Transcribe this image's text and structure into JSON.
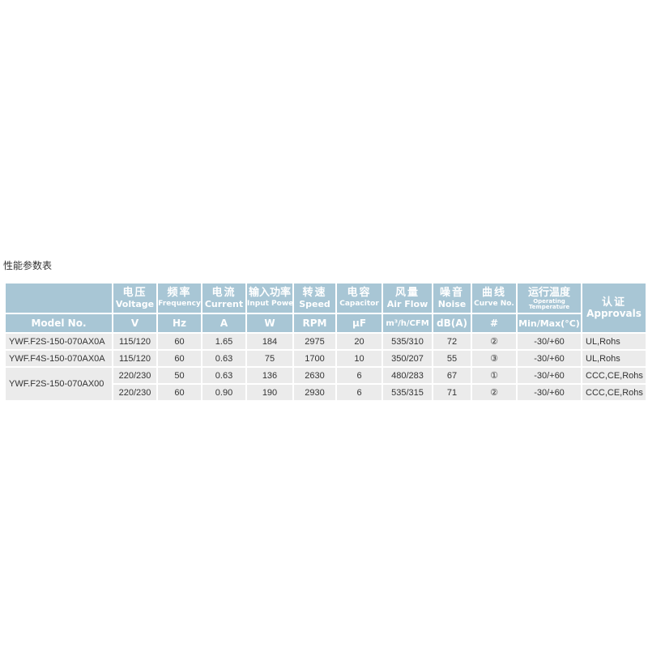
{
  "title": "性能参数表",
  "headers": [
    {
      "cn": "",
      "en": "",
      "unit": "Model No."
    },
    {
      "cn": "电压",
      "en": "Voltage",
      "unit": "V"
    },
    {
      "cn": "频率",
      "en": "Frequency",
      "unit": "Hz"
    },
    {
      "cn": "电流",
      "en": "Current",
      "unit": "A"
    },
    {
      "cn": "输入功率",
      "en": "Input Power",
      "unit": "W"
    },
    {
      "cn": "转速",
      "en": "Speed",
      "unit": "RPM"
    },
    {
      "cn": "电容",
      "en": "Capacitor",
      "unit": "µF"
    },
    {
      "cn": "风量",
      "en": "Air Flow",
      "unit": "m³/h/CFM"
    },
    {
      "cn": "噪音",
      "en": "Noise",
      "unit": "dB(A)"
    },
    {
      "cn": "曲线",
      "en": "Curve No.",
      "unit": "#"
    },
    {
      "cn": "运行温度",
      "en": "Operating Temperature",
      "unit": "Min/Max(°C)"
    },
    {
      "cn": "认证",
      "en": "Approvals",
      "unit": ""
    }
  ],
  "rows": [
    {
      "model": "YWF.F2S-150-070AX0A",
      "v": "115/120",
      "hz": "60",
      "a": "1.65",
      "w": "184",
      "rpm": "2975",
      "uf": "20",
      "air": "535/310",
      "noise": "72",
      "curve": "②",
      "temp": "-30/+60",
      "appr": "UL,Rohs"
    },
    {
      "model": "YWF.F4S-150-070AX0A",
      "v": "115/120",
      "hz": "60",
      "a": "0.63",
      "w": "75",
      "rpm": "1700",
      "uf": "10",
      "air": "350/207",
      "noise": "55",
      "curve": "③",
      "temp": "-30/+60",
      "appr": "UL,Rohs"
    },
    {
      "model": "YWF.F2S-150-070AX00",
      "v": "220/230",
      "hz": "50",
      "a": "0.63",
      "w": "136",
      "rpm": "2630",
      "uf": "6",
      "air": "480/283",
      "noise": "67",
      "curve": "①",
      "temp": "-30/+60",
      "appr": "CCC,CE,Rohs"
    },
    {
      "model": "",
      "v": "220/230",
      "hz": "60",
      "a": "0.90",
      "w": "190",
      "rpm": "2930",
      "uf": "6",
      "air": "535/315",
      "noise": "71",
      "curve": "②",
      "temp": "-30/+60",
      "appr": "CCC,CE,Rohs"
    }
  ]
}
